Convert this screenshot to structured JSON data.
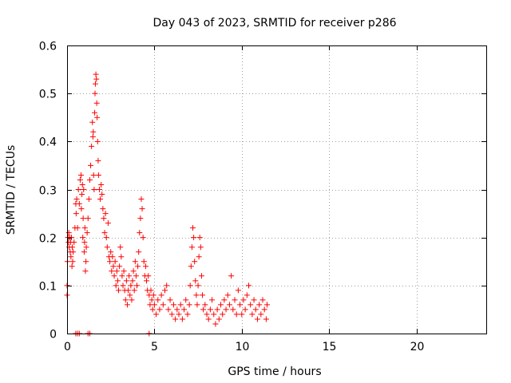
{
  "chart_data": {
    "type": "scatter",
    "title": "Day 043 of 2023, SRMTID for receiver p286",
    "xlabel": "GPS time / hours",
    "ylabel": "SRMTID / TECUs",
    "xlim": [
      0,
      24
    ],
    "ylim": [
      0,
      0.6
    ],
    "xticks": [
      0,
      5,
      10,
      15,
      20
    ],
    "xtick_labels": [
      "0",
      "5",
      "10",
      "15",
      "20"
    ],
    "yticks": [
      0,
      0.1,
      0.2,
      0.3,
      0.4,
      0.5,
      0.6
    ],
    "ytick_labels": [
      "0",
      "0.1",
      "0.2",
      "0.3",
      "0.4",
      "0.5",
      "0.6"
    ],
    "grid": true,
    "marker": "+",
    "color": "#ff0000",
    "series": [
      {
        "name": "SRMTID",
        "points": [
          [
            0.0,
            0.08
          ],
          [
            0.0,
            0.1
          ],
          [
            0.02,
            0.15
          ],
          [
            0.05,
            0.2
          ],
          [
            0.08,
            0.19
          ],
          [
            0.1,
            0.21
          ],
          [
            0.12,
            0.18
          ],
          [
            0.15,
            0.2
          ],
          [
            0.18,
            0.17
          ],
          [
            0.2,
            0.19
          ],
          [
            0.22,
            0.16
          ],
          [
            0.25,
            0.2
          ],
          [
            0.28,
            0.14
          ],
          [
            0.3,
            0.18
          ],
          [
            0.32,
            0.15
          ],
          [
            0.35,
            0.17
          ],
          [
            0.4,
            0.19
          ],
          [
            0.45,
            0.22
          ],
          [
            0.5,
            0.27
          ],
          [
            0.52,
            0.25
          ],
          [
            0.55,
            0.28
          ],
          [
            0.6,
            0.22
          ],
          [
            0.65,
            0.3
          ],
          [
            0.7,
            0.27
          ],
          [
            0.75,
            0.32
          ],
          [
            0.8,
            0.33
          ],
          [
            0.82,
            0.26
          ],
          [
            0.85,
            0.29
          ],
          [
            0.88,
            0.31
          ],
          [
            0.9,
            0.2
          ],
          [
            0.92,
            0.24
          ],
          [
            0.95,
            0.3
          ],
          [
            0.98,
            0.17
          ],
          [
            1.0,
            0.19
          ],
          [
            1.02,
            0.22
          ],
          [
            1.05,
            0.13
          ],
          [
            1.08,
            0.15
          ],
          [
            1.1,
            0.18
          ],
          [
            1.15,
            0.21
          ],
          [
            1.2,
            0.24
          ],
          [
            1.25,
            0.28
          ],
          [
            1.3,
            0.32
          ],
          [
            1.35,
            0.35
          ],
          [
            1.4,
            0.39
          ],
          [
            1.45,
            0.44
          ],
          [
            1.48,
            0.41
          ],
          [
            1.5,
            0.42
          ],
          [
            1.52,
            0.33
          ],
          [
            1.55,
            0.3
          ],
          [
            1.58,
            0.46
          ],
          [
            1.6,
            0.5
          ],
          [
            1.62,
            0.52
          ],
          [
            1.65,
            0.54
          ],
          [
            1.68,
            0.53
          ],
          [
            1.7,
            0.48
          ],
          [
            1.72,
            0.45
          ],
          [
            1.75,
            0.4
          ],
          [
            1.78,
            0.36
          ],
          [
            1.8,
            0.33
          ],
          [
            1.85,
            0.3
          ],
          [
            1.9,
            0.28
          ],
          [
            1.95,
            0.31
          ],
          [
            2.0,
            0.29
          ],
          [
            2.05,
            0.26
          ],
          [
            2.1,
            0.24
          ],
          [
            2.15,
            0.21
          ],
          [
            2.2,
            0.25
          ],
          [
            2.25,
            0.2
          ],
          [
            2.3,
            0.18
          ],
          [
            2.35,
            0.23
          ],
          [
            2.4,
            0.16
          ],
          [
            2.45,
            0.15
          ],
          [
            2.5,
            0.17
          ],
          [
            2.55,
            0.13
          ],
          [
            2.6,
            0.16
          ],
          [
            2.65,
            0.14
          ],
          [
            2.7,
            0.12
          ],
          [
            2.75,
            0.15
          ],
          [
            2.8,
            0.1
          ],
          [
            2.85,
            0.13
          ],
          [
            2.9,
            0.11
          ],
          [
            2.95,
            0.09
          ],
          [
            3.0,
            0.14
          ],
          [
            3.05,
            0.18
          ],
          [
            3.1,
            0.16
          ],
          [
            3.15,
            0.12
          ],
          [
            3.2,
            0.1
          ],
          [
            3.25,
            0.13
          ],
          [
            3.3,
            0.09
          ],
          [
            3.35,
            0.07
          ],
          [
            3.4,
            0.11
          ],
          [
            3.45,
            0.06
          ],
          [
            3.5,
            0.09
          ],
          [
            3.55,
            0.12
          ],
          [
            3.6,
            0.08
          ],
          [
            3.65,
            0.1
          ],
          [
            3.7,
            0.07
          ],
          [
            3.75,
            0.11
          ],
          [
            3.8,
            0.13
          ],
          [
            3.85,
            0.09
          ],
          [
            3.9,
            0.15
          ],
          [
            3.95,
            0.12
          ],
          [
            4.0,
            0.1
          ],
          [
            4.05,
            0.14
          ],
          [
            4.1,
            0.17
          ],
          [
            4.15,
            0.21
          ],
          [
            4.2,
            0.24
          ],
          [
            4.25,
            0.28
          ],
          [
            4.3,
            0.26
          ],
          [
            4.35,
            0.2
          ],
          [
            4.4,
            0.15
          ],
          [
            4.45,
            0.12
          ],
          [
            4.5,
            0.14
          ],
          [
            4.55,
            0.11
          ],
          [
            4.6,
            0.09
          ],
          [
            4.65,
            0.12
          ],
          [
            4.7,
            0.08
          ],
          [
            4.75,
            0.06
          ],
          [
            4.8,
            0.09
          ],
          [
            4.85,
            0.07
          ],
          [
            4.9,
            0.05
          ],
          [
            4.95,
            0.08
          ],
          [
            5.0,
            0.06
          ],
          [
            5.1,
            0.04
          ],
          [
            5.2,
            0.07
          ],
          [
            5.3,
            0.05
          ],
          [
            5.4,
            0.08
          ],
          [
            5.5,
            0.06
          ],
          [
            5.6,
            0.09
          ],
          [
            5.7,
            0.1
          ],
          [
            5.8,
            0.05
          ],
          [
            5.9,
            0.07
          ],
          [
            6.0,
            0.04
          ],
          [
            6.1,
            0.06
          ],
          [
            6.2,
            0.03
          ],
          [
            6.3,
            0.05
          ],
          [
            6.4,
            0.04
          ],
          [
            6.5,
            0.06
          ],
          [
            6.6,
            0.03
          ],
          [
            6.7,
            0.05
          ],
          [
            6.8,
            0.07
          ],
          [
            6.9,
            0.04
          ],
          [
            7.0,
            0.06
          ],
          [
            7.05,
            0.1
          ],
          [
            7.1,
            0.14
          ],
          [
            7.15,
            0.18
          ],
          [
            7.2,
            0.22
          ],
          [
            7.25,
            0.2
          ],
          [
            7.3,
            0.15
          ],
          [
            7.35,
            0.11
          ],
          [
            7.4,
            0.08
          ],
          [
            7.45,
            0.06
          ],
          [
            7.5,
            0.1
          ],
          [
            7.55,
            0.16
          ],
          [
            7.6,
            0.2
          ],
          [
            7.65,
            0.18
          ],
          [
            7.7,
            0.12
          ],
          [
            7.75,
            0.08
          ],
          [
            7.8,
            0.05
          ],
          [
            7.9,
            0.06
          ],
          [
            8.0,
            0.04
          ],
          [
            8.1,
            0.03
          ],
          [
            8.2,
            0.05
          ],
          [
            8.3,
            0.07
          ],
          [
            8.4,
            0.04
          ],
          [
            8.5,
            0.02
          ],
          [
            8.6,
            0.05
          ],
          [
            8.7,
            0.03
          ],
          [
            8.8,
            0.06
          ],
          [
            8.9,
            0.04
          ],
          [
            9.0,
            0.07
          ],
          [
            9.1,
            0.05
          ],
          [
            9.2,
            0.08
          ],
          [
            9.3,
            0.06
          ],
          [
            9.4,
            0.12
          ],
          [
            9.5,
            0.05
          ],
          [
            9.6,
            0.07
          ],
          [
            9.7,
            0.04
          ],
          [
            9.8,
            0.09
          ],
          [
            9.9,
            0.06
          ],
          [
            10.0,
            0.04
          ],
          [
            10.1,
            0.07
          ],
          [
            10.2,
            0.05
          ],
          [
            10.3,
            0.08
          ],
          [
            10.4,
            0.1
          ],
          [
            10.5,
            0.06
          ],
          [
            10.6,
            0.04
          ],
          [
            10.7,
            0.07
          ],
          [
            10.8,
            0.05
          ],
          [
            10.9,
            0.03
          ],
          [
            11.0,
            0.06
          ],
          [
            11.1,
            0.04
          ],
          [
            11.2,
            0.07
          ],
          [
            11.3,
            0.05
          ],
          [
            11.4,
            0.03
          ],
          [
            11.45,
            0.06
          ],
          [
            0.5,
            0.0
          ],
          [
            0.6,
            0.0
          ],
          [
            0.7,
            0.0
          ],
          [
            1.2,
            0.0
          ],
          [
            1.3,
            0.0
          ],
          [
            4.7,
            0.0
          ]
        ]
      }
    ]
  }
}
